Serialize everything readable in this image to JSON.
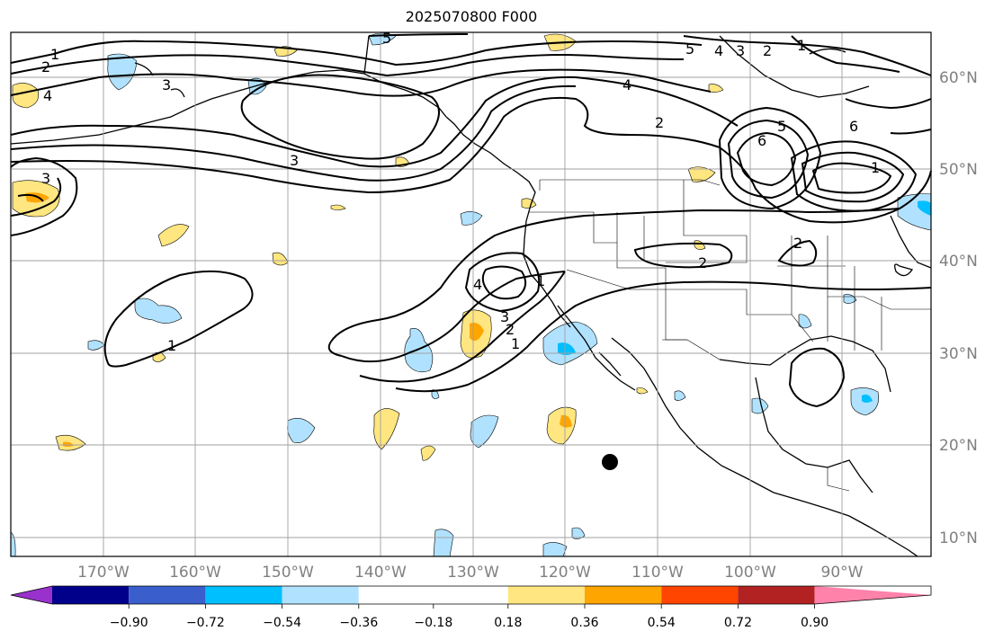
{
  "title": "2025070800 F000",
  "lon_labels": [
    "170°W",
    "160°W",
    "150°W",
    "140°W",
    "130°W",
    "120°W",
    "110°W",
    "100°W",
    "90°W"
  ],
  "lat_labels": [
    "60°N",
    "50°N",
    "40°N",
    "30°N",
    "20°N",
    "10°N"
  ],
  "colorbar": {
    "tick_labels": [
      "−0.90",
      "−0.72",
      "−0.54",
      "−0.36",
      "−0.18",
      "0.18",
      "0.36",
      "0.54",
      "0.72",
      "0.90"
    ],
    "colors": {
      "under": "#9932cc",
      "bins": [
        "#00008b",
        "#3a5fcd",
        "#00bfff",
        "#b0e2ff",
        "#ffffff",
        "#ffe680",
        "#ffa500",
        "#ff4500",
        "#b22222"
      ],
      "over": "#ff82ab"
    }
  },
  "contour_labels": [
    "1",
    "2",
    "3",
    "4",
    "5",
    "6"
  ],
  "map": {
    "region": "North Pacific / North America",
    "colors": {
      "contour": "#000000",
      "coastline": "#000000",
      "grid": "#a0a0a0",
      "marker": "#000000"
    }
  }
}
